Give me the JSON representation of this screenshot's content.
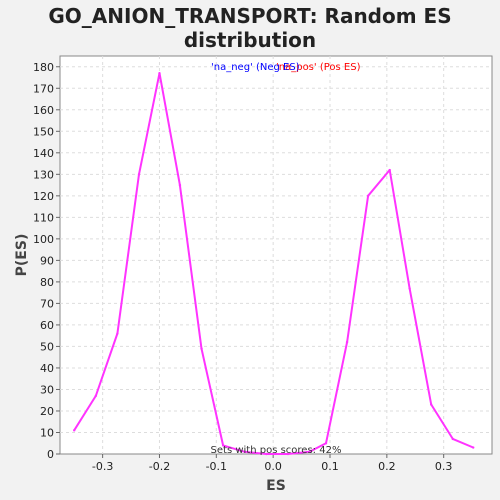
{
  "chart_data": {
    "type": "line",
    "title_line1": "GO_ANION_TRANSPORT: Random ES",
    "title_line2": "distribution",
    "xlabel": "ES",
    "ylabel": "P(ES)",
    "xlim": [
      -0.375,
      0.385
    ],
    "ylim": [
      0,
      185
    ],
    "x_ticks": [
      -0.3,
      -0.2,
      -0.1,
      0.0,
      0.1,
      0.2,
      0.3
    ],
    "x_tick_labels": [
      "-0.3",
      "-0.2",
      "-0.1",
      "0.0",
      "0.1",
      "0.2",
      "0.3"
    ],
    "y_ticks": [
      0,
      10,
      20,
      30,
      40,
      50,
      60,
      70,
      80,
      90,
      100,
      110,
      120,
      130,
      140,
      150,
      160,
      170,
      180
    ],
    "y_tick_labels": [
      "0",
      "10",
      "20",
      "30",
      "40",
      "50",
      "60",
      "70",
      "80",
      "90",
      "100",
      "110",
      "120",
      "130",
      "140",
      "150",
      "160",
      "170",
      "180"
    ],
    "grid": true,
    "legend_position": "top-center",
    "legend": {
      "neg_label": "'na_neg' (Neg ES)",
      "pos_label": "'na_pos' (Pos ES)",
      "neg_color": "#0000ff",
      "pos_color": "#ff0000"
    },
    "annotation": "Sets with pos scores: 42%",
    "series": [
      {
        "color": "#ff33ff",
        "x": [
          -0.35,
          -0.312,
          -0.274,
          -0.236,
          -0.2,
          -0.164,
          -0.126,
          -0.088,
          -0.05,
          -0.012,
          0.026,
          0.064,
          0.093,
          0.13,
          0.167,
          0.205,
          0.24,
          0.278,
          0.316,
          0.352
        ],
        "y": [
          11,
          27,
          56,
          130,
          177,
          125,
          49,
          4,
          1,
          0,
          0,
          1,
          5,
          52,
          120,
          132,
          77,
          23,
          7,
          3
        ]
      }
    ]
  }
}
